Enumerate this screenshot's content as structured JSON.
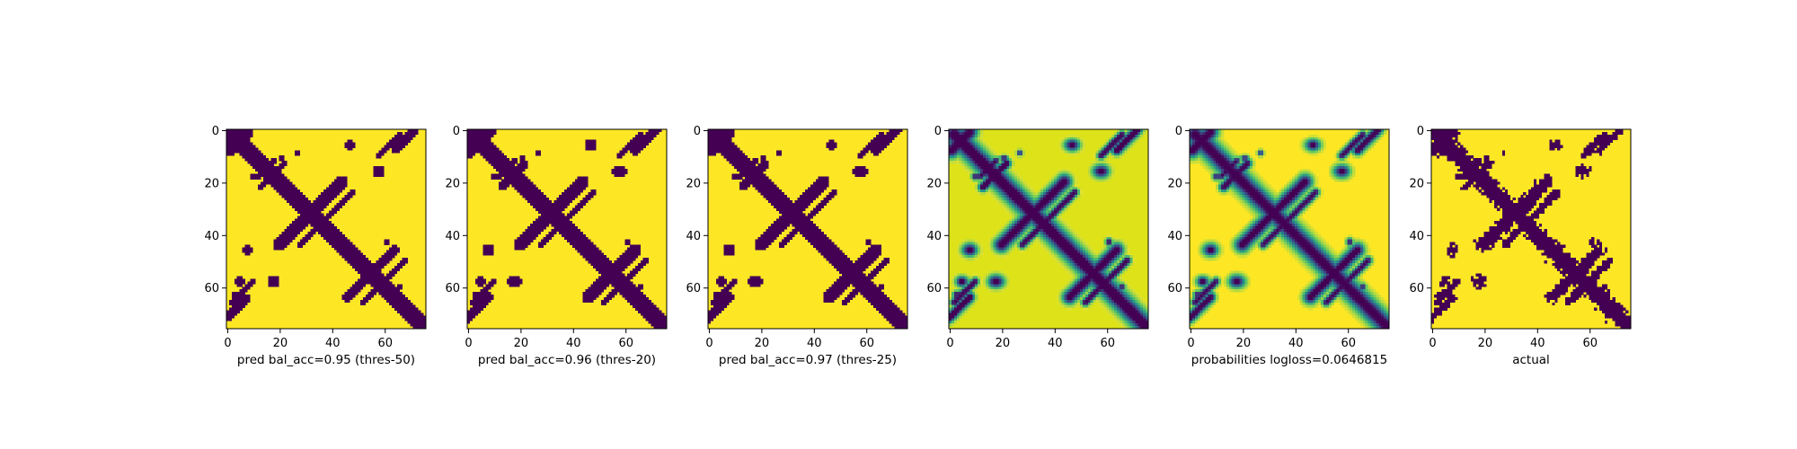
{
  "figure": {
    "background": "#ffffff",
    "colormap": "viridis",
    "colors": {
      "low": "#440154",
      "high": "#fde725",
      "mid_teal": "#21918c",
      "mid_green": "#5ec962"
    }
  },
  "chart_data": [
    {
      "type": "heatmap",
      "xlabel": "pred bal_acc=0.95 (thres-50)",
      "xticks": [
        0,
        20,
        40,
        60
      ],
      "yticks": [
        0,
        20,
        40,
        60
      ],
      "xlim": [
        0,
        76
      ],
      "ylim": [
        76,
        0
      ],
      "matrix_size": 76,
      "value_range": [
        0,
        1
      ],
      "style": "binary"
    },
    {
      "type": "heatmap",
      "xlabel": "pred bal_acc=0.96 (thres-20)",
      "xticks": [
        0,
        20,
        40,
        60
      ],
      "yticks": [
        0,
        20,
        40,
        60
      ],
      "xlim": [
        0,
        76
      ],
      "ylim": [
        76,
        0
      ],
      "matrix_size": 76,
      "value_range": [
        0,
        1
      ],
      "style": "binary"
    },
    {
      "type": "heatmap",
      "xlabel": "pred bal_acc=0.97 (thres-25)",
      "xticks": [
        0,
        20,
        40,
        60
      ],
      "yticks": [
        0,
        20,
        40,
        60
      ],
      "xlim": [
        0,
        76
      ],
      "ylim": [
        76,
        0
      ],
      "matrix_size": 76,
      "value_range": [
        0,
        1
      ],
      "style": "binary"
    },
    {
      "type": "heatmap",
      "xlabel": "",
      "xticks": [
        0,
        20,
        40,
        60
      ],
      "yticks": [
        0,
        20,
        40,
        60
      ],
      "xlim": [
        0,
        76
      ],
      "ylim": [
        76,
        0
      ],
      "matrix_size": 76,
      "value_range": [
        0,
        1
      ],
      "style": "continuous-soft"
    },
    {
      "type": "heatmap",
      "xlabel": "probabilities logloss=0.0646815",
      "xticks": [
        0,
        20,
        40,
        60
      ],
      "yticks": [
        0,
        20,
        40,
        60
      ],
      "xlim": [
        0,
        76
      ],
      "ylim": [
        76,
        0
      ],
      "matrix_size": 76,
      "value_range": [
        0,
        1
      ],
      "style": "continuous"
    },
    {
      "type": "heatmap",
      "xlabel": "actual",
      "xticks": [
        0,
        20,
        40,
        60
      ],
      "yticks": [
        0,
        20,
        40,
        60
      ],
      "xlim": [
        0,
        76
      ],
      "ylim": [
        76,
        0
      ],
      "matrix_size": 76,
      "value_range": [
        0,
        1
      ],
      "style": "binary-noisy"
    }
  ]
}
